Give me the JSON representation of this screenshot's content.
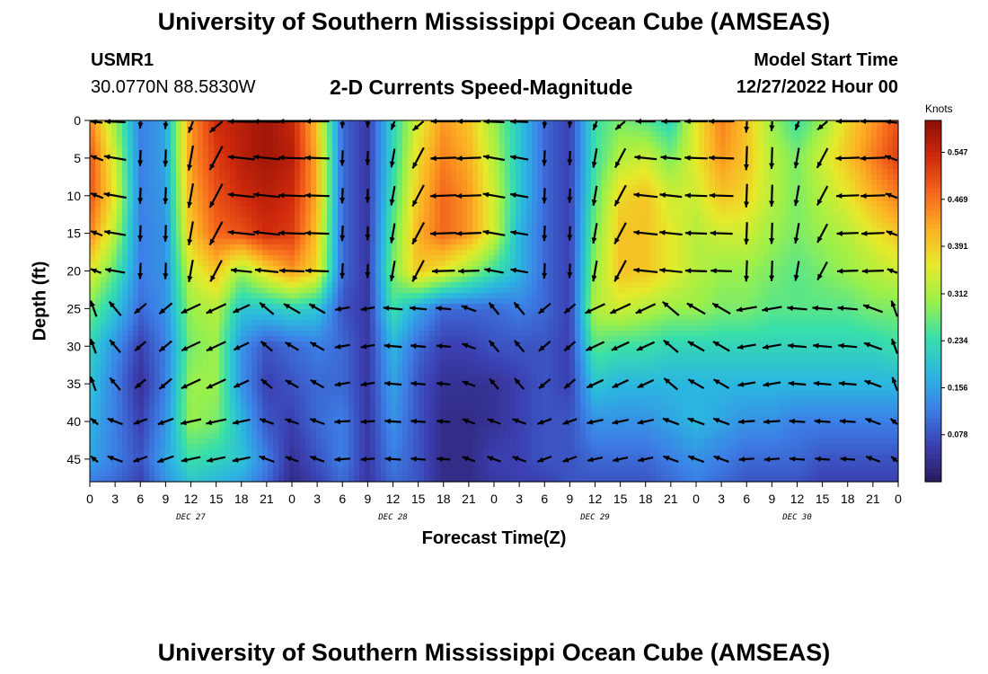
{
  "header": {
    "title": "University of Southern Mississippi Ocean Cube (AMSEAS)",
    "station": "USMR1",
    "location": "30.0770N  88.5830W",
    "subtitle": "2-D Currents Speed-Magnitude",
    "model_start_label": "Model Start Time",
    "model_start_value": "12/27/2022 Hour 00"
  },
  "footer": {
    "title": "University of Southern Mississippi Ocean Cube (AMSEAS)"
  },
  "chart_data": {
    "type": "heatmap",
    "title": "2-D Currents Speed-Magnitude",
    "xlabel": "Forecast Time(Z)",
    "ylabel": "Depth (ft)",
    "x_ticks": [
      "0",
      "3",
      "6",
      "9",
      "12",
      "15",
      "18",
      "21",
      "0",
      "3",
      "6",
      "9",
      "12",
      "15",
      "18",
      "21",
      "0",
      "3",
      "6",
      "9",
      "12",
      "15",
      "18",
      "21",
      "0",
      "3",
      "6",
      "9",
      "12",
      "15",
      "18",
      "21",
      "0"
    ],
    "x_range_hours": [
      0,
      96
    ],
    "date_labels": [
      "DEC 27",
      "DEC 28",
      "DEC 29",
      "DEC 30"
    ],
    "y_ticks": [
      0,
      5,
      10,
      15,
      20,
      25,
      30,
      35,
      40,
      45
    ],
    "y_range_ft": [
      0,
      48
    ],
    "colorbar": {
      "title": "Knots",
      "ticks": [
        0.547,
        0.469,
        0.391,
        0.312,
        0.234,
        0.156,
        0.078
      ],
      "range": [
        0.0,
        0.6
      ],
      "colors": [
        "#2a1a5e",
        "#3b3fb0",
        "#3c7fe6",
        "#2bb7e0",
        "#39e0a8",
        "#9cf04a",
        "#e6ea2a",
        "#fcb024",
        "#f5661c",
        "#cf2a0c",
        "#8a0d06"
      ]
    },
    "speed_model": {
      "description": "Approximate speed field (knots) by forecast hour (columns) and depth band (rows)",
      "depths_ft": [
        0,
        5,
        10,
        15,
        20,
        25,
        30,
        35,
        40,
        45,
        48
      ],
      "hours": [
        0,
        3,
        6,
        9,
        12,
        15,
        18,
        21,
        24,
        27,
        30,
        33,
        36,
        39,
        42,
        45,
        48,
        51,
        54,
        57,
        60,
        63,
        66,
        69,
        72,
        75,
        78,
        81,
        84,
        87,
        90,
        93,
        96
      ],
      "speed": [
        [
          0.46,
          0.3,
          0.12,
          0.16,
          0.44,
          0.54,
          0.56,
          0.58,
          0.55,
          0.4,
          0.1,
          0.05,
          0.22,
          0.35,
          0.44,
          0.4,
          0.3,
          0.2,
          0.1,
          0.06,
          0.24,
          0.28,
          0.26,
          0.22,
          0.36,
          0.46,
          0.4,
          0.3,
          0.24,
          0.3,
          0.38,
          0.44,
          0.5
        ],
        [
          0.5,
          0.34,
          0.12,
          0.16,
          0.44,
          0.52,
          0.56,
          0.58,
          0.56,
          0.42,
          0.1,
          0.05,
          0.22,
          0.38,
          0.46,
          0.42,
          0.32,
          0.2,
          0.1,
          0.06,
          0.24,
          0.32,
          0.34,
          0.28,
          0.36,
          0.44,
          0.4,
          0.32,
          0.28,
          0.34,
          0.4,
          0.46,
          0.52
        ],
        [
          0.5,
          0.36,
          0.12,
          0.15,
          0.42,
          0.5,
          0.54,
          0.56,
          0.54,
          0.42,
          0.1,
          0.05,
          0.24,
          0.4,
          0.48,
          0.44,
          0.34,
          0.2,
          0.1,
          0.06,
          0.26,
          0.38,
          0.4,
          0.34,
          0.34,
          0.4,
          0.38,
          0.32,
          0.28,
          0.32,
          0.36,
          0.42,
          0.46
        ],
        [
          0.46,
          0.32,
          0.12,
          0.14,
          0.4,
          0.48,
          0.5,
          0.54,
          0.52,
          0.4,
          0.1,
          0.05,
          0.26,
          0.42,
          0.48,
          0.44,
          0.34,
          0.18,
          0.1,
          0.06,
          0.28,
          0.4,
          0.4,
          0.36,
          0.32,
          0.34,
          0.34,
          0.3,
          0.28,
          0.3,
          0.32,
          0.36,
          0.4
        ],
        [
          0.36,
          0.26,
          0.12,
          0.14,
          0.34,
          0.4,
          0.3,
          0.38,
          0.44,
          0.38,
          0.1,
          0.05,
          0.28,
          0.4,
          0.36,
          0.3,
          0.24,
          0.18,
          0.1,
          0.06,
          0.3,
          0.4,
          0.4,
          0.36,
          0.32,
          0.3,
          0.3,
          0.28,
          0.26,
          0.28,
          0.3,
          0.32,
          0.34
        ],
        [
          0.28,
          0.2,
          0.1,
          0.14,
          0.3,
          0.32,
          0.2,
          0.2,
          0.22,
          0.2,
          0.08,
          0.05,
          0.24,
          0.16,
          0.1,
          0.1,
          0.1,
          0.12,
          0.1,
          0.06,
          0.32,
          0.34,
          0.32,
          0.3,
          0.3,
          0.28,
          0.28,
          0.26,
          0.26,
          0.26,
          0.26,
          0.28,
          0.28
        ],
        [
          0.22,
          0.14,
          0.06,
          0.12,
          0.28,
          0.3,
          0.14,
          0.08,
          0.1,
          0.12,
          0.1,
          0.05,
          0.18,
          0.1,
          0.06,
          0.06,
          0.08,
          0.08,
          0.08,
          0.06,
          0.26,
          0.24,
          0.24,
          0.22,
          0.22,
          0.22,
          0.22,
          0.22,
          0.22,
          0.22,
          0.22,
          0.22,
          0.24
        ],
        [
          0.2,
          0.12,
          0.04,
          0.12,
          0.3,
          0.3,
          0.14,
          0.06,
          0.08,
          0.1,
          0.1,
          0.05,
          0.16,
          0.08,
          0.04,
          0.04,
          0.04,
          0.06,
          0.08,
          0.06,
          0.2,
          0.18,
          0.18,
          0.18,
          0.18,
          0.18,
          0.18,
          0.18,
          0.18,
          0.18,
          0.18,
          0.18,
          0.18
        ],
        [
          0.18,
          0.12,
          0.06,
          0.14,
          0.3,
          0.28,
          0.18,
          0.08,
          0.06,
          0.1,
          0.12,
          0.05,
          0.14,
          0.08,
          0.03,
          0.03,
          0.04,
          0.06,
          0.08,
          0.08,
          0.14,
          0.14,
          0.14,
          0.16,
          0.18,
          0.16,
          0.14,
          0.14,
          0.12,
          0.12,
          0.12,
          0.12,
          0.12
        ],
        [
          0.16,
          0.12,
          0.08,
          0.16,
          0.24,
          0.22,
          0.2,
          0.12,
          0.04,
          0.08,
          0.12,
          0.05,
          0.12,
          0.08,
          0.03,
          0.03,
          0.06,
          0.06,
          0.08,
          0.08,
          0.1,
          0.1,
          0.1,
          0.12,
          0.14,
          0.12,
          0.1,
          0.1,
          0.1,
          0.08,
          0.08,
          0.08,
          0.08
        ],
        [
          0.12,
          0.1,
          0.06,
          0.14,
          0.2,
          0.18,
          0.16,
          0.1,
          0.03,
          0.06,
          0.1,
          0.05,
          0.1,
          0.08,
          0.03,
          0.03,
          0.05,
          0.06,
          0.06,
          0.08,
          0.08,
          0.08,
          0.08,
          0.1,
          0.12,
          0.1,
          0.08,
          0.08,
          0.08,
          0.06,
          0.06,
          0.06,
          0.06
        ]
      ]
    }
  }
}
